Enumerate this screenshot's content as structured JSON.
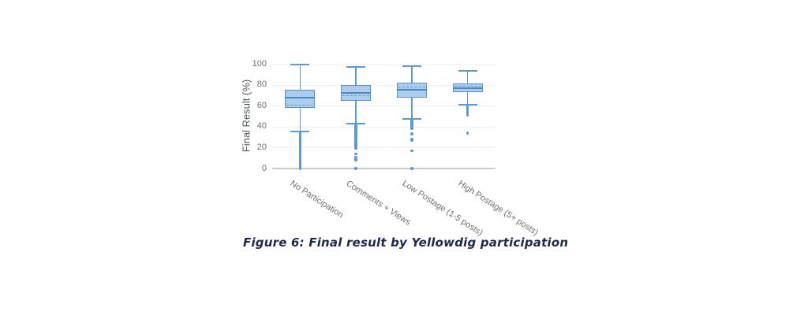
{
  "caption": "Figure 6: Final result by Yellowdig participation",
  "colors": {
    "box_line": "#5b9bd5",
    "box_fill": "#aecdec",
    "median": "#4a87c3",
    "baseline": "#c9cbcd",
    "gridline": "#e3e5e8",
    "tick_text": "#6d7276",
    "caption_text": "#20294b"
  },
  "chart_data": {
    "type": "box",
    "title": "",
    "xlabel": "",
    "ylabel": "Final Result (%)",
    "ylim": [
      0,
      100
    ],
    "yticks": [
      0,
      20,
      40,
      60,
      80,
      100
    ],
    "grid": true,
    "legend": false,
    "categories": [
      "No Participation",
      "Comments + Views",
      "Low Postage (1-5 posts)",
      "High Postage (5+ posts)"
    ],
    "series": [
      {
        "name": "No Participation",
        "whisker_low": 35,
        "q1": 58,
        "median": 68,
        "mean": 61,
        "q3": 75,
        "whisker_high": 99,
        "outliers": [
          0,
          1,
          2,
          3,
          4,
          5,
          6,
          7,
          8,
          9,
          10,
          11,
          12,
          13,
          14,
          15,
          16,
          17,
          18,
          19,
          20,
          21,
          22,
          23,
          24,
          25,
          26,
          27,
          28,
          29,
          30,
          31,
          32,
          33,
          34
        ]
      },
      {
        "name": "Comments + Views",
        "whisker_low": 43,
        "q1": 65,
        "median": 72,
        "mean": 70,
        "q3": 80,
        "whisker_high": 97,
        "outliers": [
          0,
          8,
          9,
          11,
          14,
          19,
          20,
          21,
          22,
          23,
          24,
          25,
          26,
          28,
          30,
          31,
          32,
          33,
          34,
          35,
          36,
          37,
          38,
          39,
          40,
          41,
          42
        ]
      },
      {
        "name": "Low Postage (1-5 posts)",
        "whisker_low": 47,
        "q1": 68,
        "median": 75,
        "mean": 78,
        "q3": 82,
        "whisker_high": 98,
        "outliers": [
          0,
          17,
          27,
          28,
          33,
          38,
          40,
          41,
          42,
          43,
          44,
          45,
          46
        ]
      },
      {
        "name": "High Postage (5+ posts)",
        "whisker_low": 61,
        "q1": 73,
        "median": 77,
        "mean": 79,
        "q3": 81,
        "whisker_high": 93,
        "outliers": [
          34,
          51,
          52,
          53,
          54,
          55,
          56,
          57,
          58,
          59,
          60
        ]
      }
    ]
  }
}
